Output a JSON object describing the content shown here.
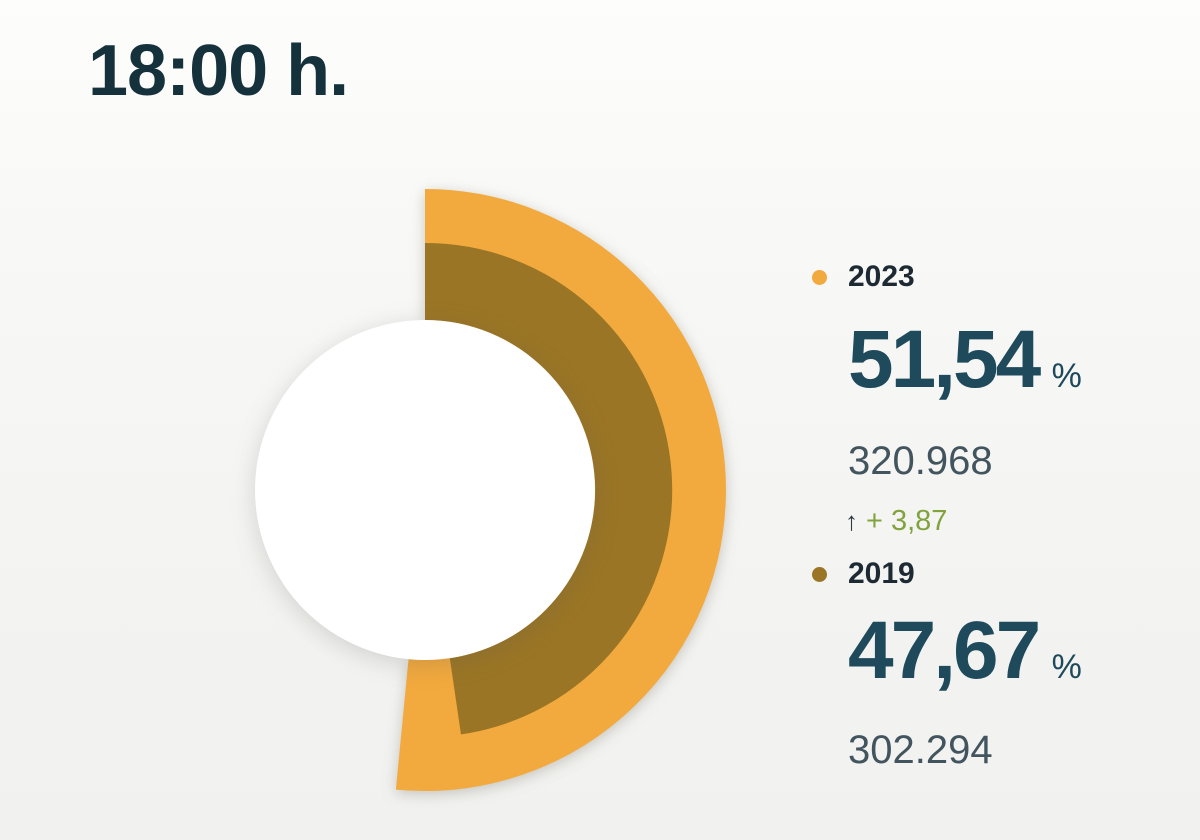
{
  "header": {
    "time_label": "18:00 h."
  },
  "chart_data": {
    "type": "pie",
    "subtype": "half-donut-gauge",
    "title": "18:00 h.",
    "unit": "%",
    "legend_position": "right",
    "max_percent": 100,
    "series": [
      {
        "name": "2023",
        "percent": 51.54,
        "percent_label": "51,54",
        "votes": 320968,
        "votes_label": "320.968",
        "color": "#F2A93D"
      },
      {
        "name": "2019",
        "percent": 47.67,
        "percent_label": "47,67",
        "votes": 302294,
        "votes_label": "302.294",
        "color": "#9A7525"
      }
    ],
    "change": {
      "direction": "up",
      "arrow": "↑",
      "label": "+ 3,87",
      "color": "#81A33D"
    }
  },
  "colors": {
    "title_text": "#15313C",
    "year_text": "#1E2A33",
    "big_number_text": "#1E4A5B",
    "sub_number_text": "#42545E",
    "arrow_text": "#2A3942",
    "hole_fill": "#FFFFFF"
  }
}
